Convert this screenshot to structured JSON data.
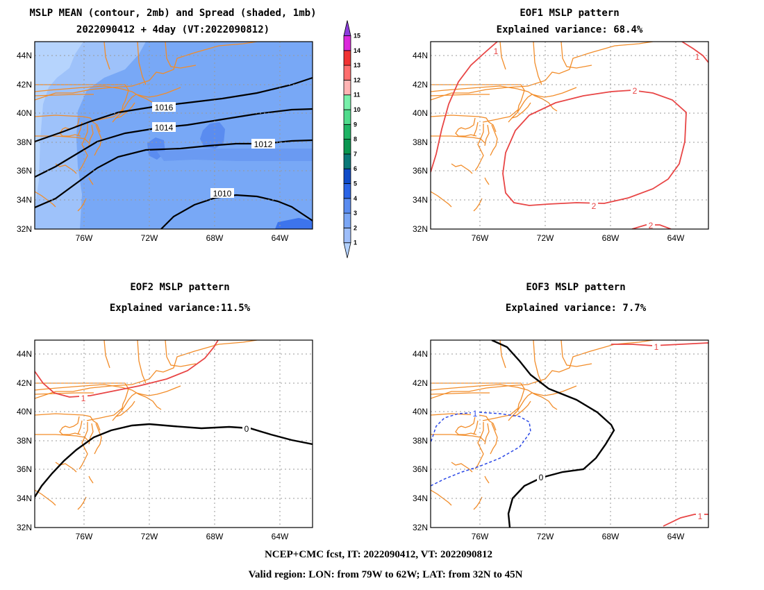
{
  "panels": [
    {
      "title_line1": "MSLP MEAN (contour, 2mb) and Spread (shaded, 1mb)",
      "title_line2": "2022090412 + 4day (VT:2022090812)",
      "contour_labels": [
        "1016",
        "1014",
        "1012",
        "1010"
      ]
    },
    {
      "title_line1": "EOF1 MSLP pattern",
      "title_line2": "Explained variance: 68.4%",
      "contour_labels": [
        "1",
        "1",
        "2",
        "2",
        "2"
      ]
    },
    {
      "title_line1": "EOF2 MSLP pattern",
      "title_line2": "Explained variance:11.5%",
      "contour_labels": [
        "1",
        "0"
      ]
    },
    {
      "title_line1": "EOF3 MSLP pattern",
      "title_line2": "Explained variance: 7.7%",
      "contour_labels": [
        "1",
        "1",
        "1",
        "0"
      ]
    }
  ],
  "axes": {
    "lat_labels": [
      "32N",
      "34N",
      "36N",
      "38N",
      "40N",
      "42N",
      "44N"
    ],
    "lon_labels": [
      "76W",
      "72W",
      "68W",
      "64W"
    ]
  },
  "colorbar": {
    "labels": [
      "1",
      "2",
      "3",
      "4",
      "5",
      "6",
      "7",
      "8",
      "9",
      "10",
      "11",
      "12",
      "13",
      "14",
      "15"
    ],
    "colors": [
      "#b4d2ff",
      "#9ebefa",
      "#7aa6f5",
      "#5a8cf0",
      "#2a64e6",
      "#0f4bc8",
      "#0a7878",
      "#0a9650",
      "#1eb464",
      "#50dc8c",
      "#78f0aa",
      "#ffb4b4",
      "#ff6e6e",
      "#f03232",
      "#dc28dc",
      "#8c3cdc"
    ]
  },
  "footer": {
    "line1": "NCEP+CMC fcst, IT: 2022090412, VT: 2022090812",
    "line2": "Valid region: LON: from 79W to 62W; LAT: from 32N to 45N"
  },
  "colors": {
    "coast": "#f28c28",
    "mean_contour": "#000000",
    "positive_contour": "#e84545",
    "negative_contour": "#2846e6",
    "zero_contour": "#000000"
  }
}
